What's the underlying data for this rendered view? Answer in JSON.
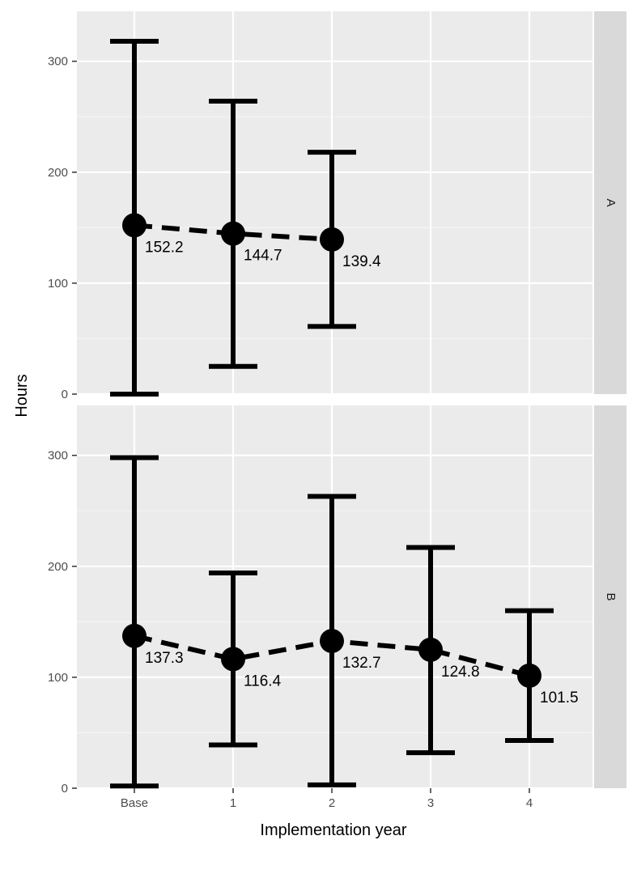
{
  "chart_data": {
    "type": "scatter",
    "xlabel": "Implementation year",
    "ylabel": "Hours",
    "categories": [
      "Base",
      "1",
      "2",
      "3",
      "4"
    ],
    "ylim": [
      0,
      345
    ],
    "yticks": [
      0,
      100,
      200,
      300
    ],
    "grid": true,
    "colors": {
      "panel": "#ebebeb",
      "grid": "#ffffff",
      "strip": "#d9d9d9",
      "marks": "#000000"
    },
    "facets": [
      {
        "strip": "A",
        "points": [
          {
            "x": "Base",
            "y": 152.2,
            "lower": 0,
            "upper": 318,
            "label": "152.2"
          },
          {
            "x": "1",
            "y": 144.7,
            "lower": 25,
            "upper": 264,
            "label": "144.7"
          },
          {
            "x": "2",
            "y": 139.4,
            "lower": 61,
            "upper": 218,
            "label": "139.4"
          }
        ]
      },
      {
        "strip": "B",
        "points": [
          {
            "x": "Base",
            "y": 137.3,
            "lower": 2,
            "upper": 298,
            "label": "137.3"
          },
          {
            "x": "1",
            "y": 116.4,
            "lower": 39,
            "upper": 194,
            "label": "116.4"
          },
          {
            "x": "2",
            "y": 132.7,
            "lower": 3,
            "upper": 263,
            "label": "132.7"
          },
          {
            "x": "3",
            "y": 124.8,
            "lower": 32,
            "upper": 217,
            "label": "124.8"
          },
          {
            "x": "4",
            "y": 101.5,
            "lower": 43,
            "upper": 160,
            "label": "101.5"
          }
        ]
      }
    ]
  }
}
